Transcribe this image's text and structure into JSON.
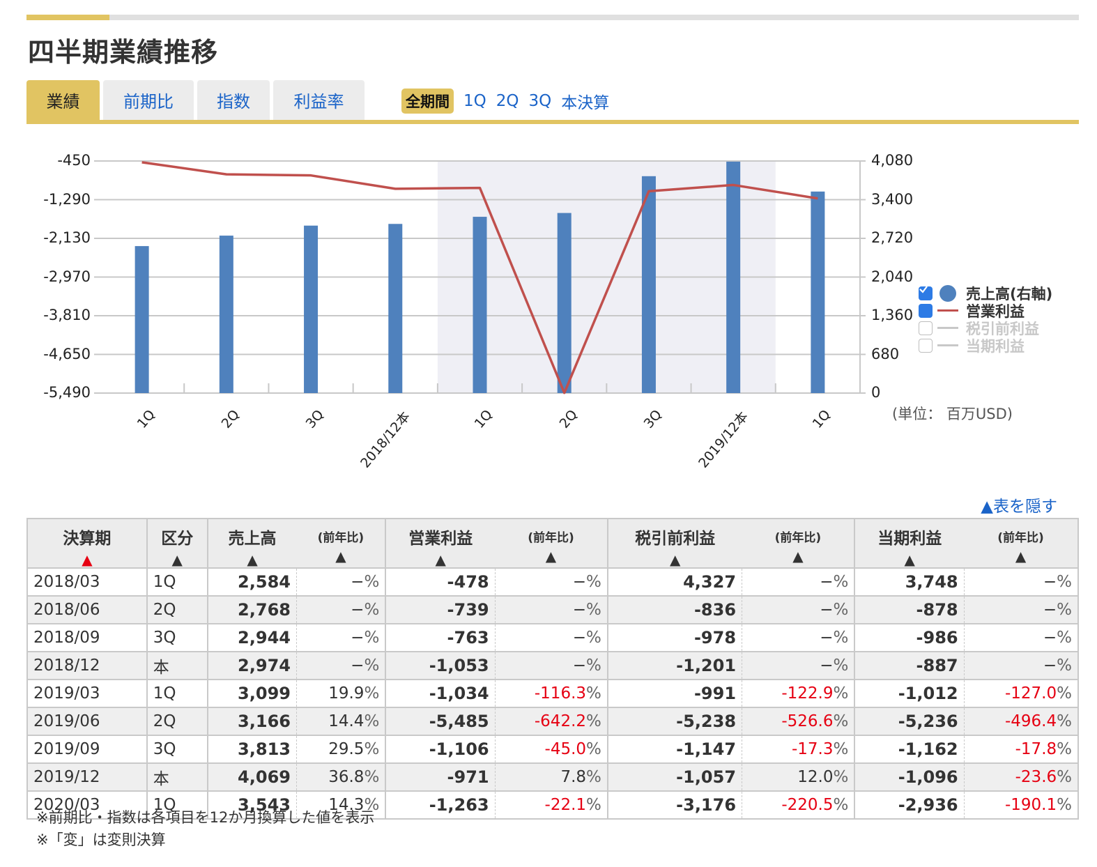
{
  "page": {
    "title": "四半期業績推移",
    "accent_color": "#e1c462",
    "link_color": "#1a63c8",
    "negative_color": "#e60012"
  },
  "tabs": [
    {
      "label": "業績",
      "active": true
    },
    {
      "label": "前期比",
      "active": false
    },
    {
      "label": "指数",
      "active": false
    },
    {
      "label": "利益率",
      "active": false
    }
  ],
  "period_filter": {
    "selected": "全期間",
    "options": [
      "1Q",
      "2Q",
      "3Q",
      "本決算"
    ]
  },
  "legend": [
    {
      "label": "売上高(右軸)",
      "checked": true,
      "marker": "dot",
      "color": "#4f81bd",
      "text_color": "#333333"
    },
    {
      "label": "営業利益",
      "checked": true,
      "marker": "line",
      "color": "#c0504d",
      "text_color": "#333333"
    },
    {
      "label": "税引前利益",
      "checked": false,
      "marker": "line",
      "color": "#c8c8c8",
      "text_color": "#c8c8c8"
    },
    {
      "label": "当期利益",
      "checked": false,
      "marker": "line",
      "color": "#c8c8c8",
      "text_color": "#c8c8c8"
    }
  ],
  "unit_label": "(単位： 百万USD)",
  "hide_table_label": "▲表を隠す",
  "chart_data": {
    "type": "bar",
    "title": "",
    "categories": [
      "1Q",
      "2Q",
      "3Q",
      "2018/12本",
      "1Q",
      "2Q",
      "3Q",
      "2019/12本",
      "1Q"
    ],
    "series": [
      {
        "name": "売上高(右軸)",
        "type": "bar",
        "axis": "right",
        "color": "#4f81bd",
        "values": [
          2584,
          2768,
          2944,
          2974,
          3099,
          3166,
          3813,
          4069,
          3543
        ]
      },
      {
        "name": "営業利益",
        "type": "line",
        "axis": "left",
        "color": "#c0504d",
        "values": [
          -478,
          -739,
          -763,
          -1053,
          -1034,
          -5485,
          -1106,
          -971,
          -1263
        ]
      }
    ],
    "left_axis": {
      "ticks": [
        "-450",
        "-1,290",
        "-2,130",
        "-2,970",
        "-3,810",
        "-4,650",
        "-5,490"
      ],
      "ylim": [
        -5490,
        -450
      ]
    },
    "right_axis": {
      "ticks": [
        "4,080",
        "3,400",
        "2,720",
        "2,040",
        "1,360",
        "680",
        "0"
      ],
      "ylim": [
        0,
        4080
      ]
    },
    "highlight_range": {
      "from_index": 4,
      "to_index": 7,
      "color": "#efeff5"
    },
    "grid": true,
    "legend_position": "right",
    "xlabel": "",
    "ylabel": "",
    "unit": "百万USD"
  },
  "table": {
    "headers": [
      {
        "label": "決算期",
        "sub": false,
        "arrow_red": true
      },
      {
        "label": "区分",
        "sub": false,
        "arrow_red": false
      },
      {
        "label": "売上高",
        "sub": false,
        "arrow_red": false
      },
      {
        "label": "(前年比)",
        "sub": true,
        "arrow_red": false
      },
      {
        "label": "営業利益",
        "sub": false,
        "arrow_red": false
      },
      {
        "label": "(前年比)",
        "sub": true,
        "arrow_red": false
      },
      {
        "label": "税引前利益",
        "sub": false,
        "arrow_red": false
      },
      {
        "label": "(前年比)",
        "sub": true,
        "arrow_red": false
      },
      {
        "label": "当期利益",
        "sub": false,
        "arrow_red": false
      },
      {
        "label": "(前年比)",
        "sub": true,
        "arrow_red": false
      }
    ],
    "sort_arrow": "▲",
    "rows": [
      {
        "period": "2018/03",
        "type": "1Q",
        "sales": "2,584",
        "sales_yoy": "−",
        "op": "-478",
        "op_yoy": "−",
        "pretax": "4,327",
        "pretax_yoy": "−",
        "net": "3,748",
        "net_yoy": "−"
      },
      {
        "period": "2018/06",
        "type": "2Q",
        "sales": "2,768",
        "sales_yoy": "−",
        "op": "-739",
        "op_yoy": "−",
        "pretax": "-836",
        "pretax_yoy": "−",
        "net": "-878",
        "net_yoy": "−"
      },
      {
        "period": "2018/09",
        "type": "3Q",
        "sales": "2,944",
        "sales_yoy": "−",
        "op": "-763",
        "op_yoy": "−",
        "pretax": "-978",
        "pretax_yoy": "−",
        "net": "-986",
        "net_yoy": "−"
      },
      {
        "period": "2018/12",
        "type": "本",
        "sales": "2,974",
        "sales_yoy": "−",
        "op": "-1,053",
        "op_yoy": "−",
        "pretax": "-1,201",
        "pretax_yoy": "−",
        "net": "-887",
        "net_yoy": "−"
      },
      {
        "period": "2019/03",
        "type": "1Q",
        "sales": "3,099",
        "sales_yoy": "19.9",
        "op": "-1,034",
        "op_yoy": "-116.3",
        "pretax": "-991",
        "pretax_yoy": "-122.9",
        "net": "-1,012",
        "net_yoy": "-127.0"
      },
      {
        "period": "2019/06",
        "type": "2Q",
        "sales": "3,166",
        "sales_yoy": "14.4",
        "op": "-5,485",
        "op_yoy": "-642.2",
        "pretax": "-5,238",
        "pretax_yoy": "-526.6",
        "net": "-5,236",
        "net_yoy": "-496.4"
      },
      {
        "period": "2019/09",
        "type": "3Q",
        "sales": "3,813",
        "sales_yoy": "29.5",
        "op": "-1,106",
        "op_yoy": "-45.0",
        "pretax": "-1,147",
        "pretax_yoy": "-17.3",
        "net": "-1,162",
        "net_yoy": "-17.8"
      },
      {
        "period": "2019/12",
        "type": "本",
        "sales": "4,069",
        "sales_yoy": "36.8",
        "op": "-971",
        "op_yoy": "7.8",
        "pretax": "-1,057",
        "pretax_yoy": "12.0",
        "net": "-1,096",
        "net_yoy": "-23.6"
      },
      {
        "period": "2020/03",
        "type": "1Q",
        "sales": "3,543",
        "sales_yoy": "14.3",
        "op": "-1,263",
        "op_yoy": "-22.1",
        "pretax": "-3,176",
        "pretax_yoy": "-220.5",
        "net": "-2,936",
        "net_yoy": "-190.1"
      }
    ],
    "percent_sign": "%"
  },
  "notes": [
    "※前期比・指数は各項目を12か月換算した値を表示",
    "※「変」は変則決算"
  ]
}
